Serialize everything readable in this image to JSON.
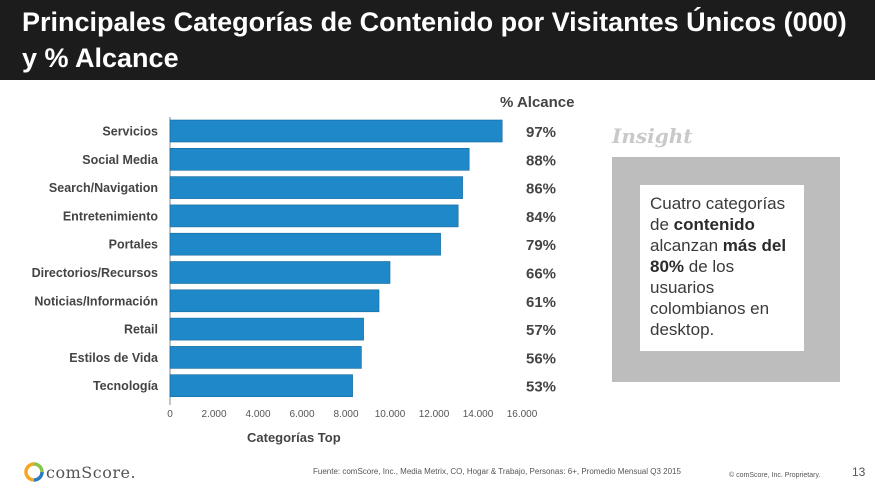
{
  "title": "Principales Categorías de Contenido por Visitantes Únicos (000) y % Alcance",
  "alcance_header": "% Alcance",
  "insight": {
    "title": "Insight",
    "t1": "Cuatro categorías de ",
    "b1": "contenido",
    "t2": " alcanzan ",
    "b2": "más del 80%",
    "t3": " de los usuarios colombianos en desktop."
  },
  "footer": {
    "source": "Fuente: comScore, Inc., Media Metrix, CO, Hogar & Trabajo, Personas: 6+, Promedio Mensual Q3 2015",
    "copyright": "© comScore, Inc. Proprietary.",
    "page": "13",
    "logo_text": "comScore."
  },
  "colors": {
    "bar": "#1e88c8",
    "bar_edge": "#156a9c",
    "title_bg": "#1c1c1c"
  },
  "chart_data": {
    "type": "bar",
    "orientation": "horizontal",
    "xlabel": "Categorías Top",
    "xlim": [
      0,
      16000
    ],
    "xticks": [
      0,
      2000,
      4000,
      6000,
      8000,
      10000,
      12000,
      14000,
      16000
    ],
    "xtick_labels": [
      "0",
      "2.000",
      "4.000",
      "6.000",
      "8.000",
      "10.000",
      "12.000",
      "14.000",
      "16.000"
    ],
    "categories": [
      "Servicios",
      "Social Media",
      "Search/Navigation",
      "Entretenimiento",
      "Portales",
      "Directorios/Recursos",
      "Noticias/Información",
      "Retail",
      "Estilos de Vida",
      "Tecnología"
    ],
    "values": [
      15100,
      13600,
      13300,
      13100,
      12300,
      10000,
      9500,
      8800,
      8700,
      8300
    ],
    "alcance": [
      "97%",
      "88%",
      "86%",
      "84%",
      "79%",
      "66%",
      "61%",
      "57%",
      "56%",
      "53%"
    ],
    "grid": false,
    "legend": "none"
  }
}
